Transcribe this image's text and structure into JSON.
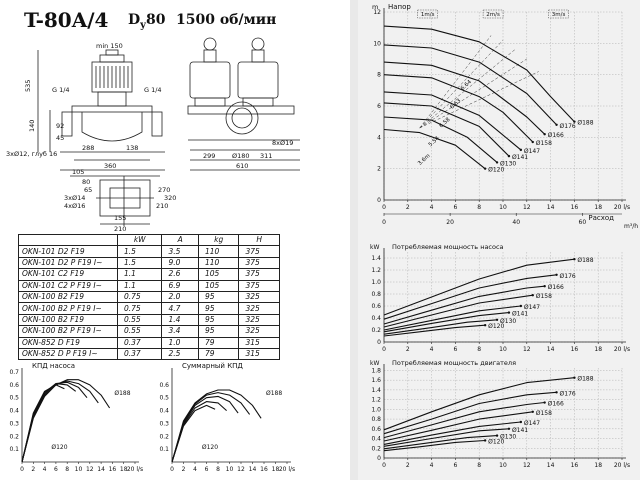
{
  "header": {
    "model": "T-80A/4",
    "dn_prefix": "D",
    "dn_sub": "y",
    "dn_value": "80",
    "speed": "1500 об/мин"
  },
  "drawing": {
    "dims": [
      "min 150",
      "535",
      "G 1/4",
      "G 1/4",
      "140",
      "92",
      "45",
      "288",
      "138",
      "360",
      "299",
      "8xØ19",
      "Ø180",
      "311",
      "610",
      "3xØ12, глуб 16",
      "105",
      "80",
      "65",
      "270",
      "320",
      "210",
      "155",
      "3xØ14",
      "4xØ16",
      "210"
    ]
  },
  "spec_table": {
    "headers": [
      "",
      "kW",
      "A",
      "kg",
      "H"
    ],
    "rows": [
      [
        "OKN-101 D2 F19",
        "1.5",
        "3.5",
        "110",
        "375"
      ],
      [
        "OKN-101 D2 P F19 I~",
        "1.5",
        "9.0",
        "110",
        "375"
      ],
      [
        "OKN-101 C2 F19",
        "1.1",
        "2.6",
        "105",
        "375"
      ],
      [
        "OKN-101 C2 P F19 I~",
        "1.1",
        "6.9",
        "105",
        "375"
      ],
      [
        "OKN-100 B2 F19",
        "0.75",
        "2.0",
        "95",
        "325"
      ],
      [
        "OKN-100 B2 P F19 I~",
        "0.75",
        "4.7",
        "95",
        "325"
      ],
      [
        "OKN-100 B2 F19",
        "0.55",
        "1.4",
        "95",
        "325"
      ],
      [
        "OKN-100 B2 P F19 I~",
        "0.55",
        "3.4",
        "95",
        "325"
      ],
      [
        "OKN-852 D F19",
        "0.37",
        "1.0",
        "79",
        "315"
      ],
      [
        "OKN-852 D P F19 I~",
        "0.37",
        "2.5",
        "79",
        "315"
      ]
    ]
  },
  "chart_data": [
    {
      "type": "line",
      "title": "КПД насоса",
      "xlabel": "",
      "x_tick_labels": [
        "0",
        "2",
        "4",
        "6",
        "8",
        "10",
        "12",
        "14",
        "16",
        "18",
        "20 l/s"
      ],
      "y_tick_labels": [
        "0.1",
        "0.2",
        "0.3",
        "0.4",
        "0.5",
        "0.6",
        "0.7"
      ],
      "xlim": [
        0,
        20
      ],
      "ylim": [
        0,
        0.7
      ],
      "annotations": [
        "Ø188",
        "Ø120"
      ],
      "series": [
        {
          "x": [
            0,
            2,
            4,
            6,
            7.5
          ],
          "y": [
            0,
            0.38,
            0.55,
            0.6,
            0.57
          ]
        },
        {
          "x": [
            0,
            2,
            4,
            6,
            8,
            9.5
          ],
          "y": [
            0,
            0.37,
            0.54,
            0.61,
            0.6,
            0.55
          ]
        },
        {
          "x": [
            0,
            2,
            4,
            6,
            8,
            10,
            11.5
          ],
          "y": [
            0,
            0.36,
            0.53,
            0.61,
            0.62,
            0.58,
            0.5
          ]
        },
        {
          "x": [
            0,
            2,
            4,
            6,
            8,
            10,
            12,
            13.5
          ],
          "y": [
            0,
            0.35,
            0.52,
            0.6,
            0.63,
            0.61,
            0.55,
            0.46
          ]
        },
        {
          "x": [
            0,
            2,
            4,
            6,
            8,
            10,
            12,
            14,
            15.5
          ],
          "y": [
            0,
            0.34,
            0.51,
            0.6,
            0.64,
            0.64,
            0.6,
            0.52,
            0.42
          ]
        }
      ]
    },
    {
      "type": "line",
      "title": "Суммарный КПД",
      "x_tick_labels": [
        "0",
        "2",
        "4",
        "6",
        "8",
        "10",
        "12",
        "14",
        "16",
        "18",
        "20 l/s"
      ],
      "y_tick_labels": [
        "0.1",
        "0.2",
        "0.3",
        "0.4",
        "0.5",
        "0.6"
      ],
      "xlim": [
        0,
        20
      ],
      "ylim": [
        0,
        0.7
      ],
      "annotations": [
        "Ø188",
        "Ø120"
      ],
      "series": [
        {
          "x": [
            0,
            2,
            4,
            6,
            7.5
          ],
          "y": [
            0,
            0.28,
            0.4,
            0.44,
            0.41
          ]
        },
        {
          "x": [
            0,
            2,
            4,
            6,
            8,
            9.5
          ],
          "y": [
            0,
            0.29,
            0.42,
            0.47,
            0.46,
            0.4
          ]
        },
        {
          "x": [
            0,
            2,
            4,
            6,
            8,
            10,
            11.5
          ],
          "y": [
            0,
            0.3,
            0.44,
            0.5,
            0.51,
            0.47,
            0.38
          ]
        },
        {
          "x": [
            0,
            2,
            4,
            6,
            8,
            10,
            12,
            13.5
          ],
          "y": [
            0,
            0.31,
            0.45,
            0.52,
            0.54,
            0.52,
            0.46,
            0.37
          ]
        },
        {
          "x": [
            0,
            2,
            4,
            6,
            8,
            10,
            12,
            14,
            15.5
          ],
          "y": [
            0,
            0.32,
            0.46,
            0.53,
            0.56,
            0.56,
            0.52,
            0.44,
            0.34
          ]
        }
      ]
    },
    {
      "type": "line",
      "title": "Напор",
      "xlabel": "Расход",
      "unit_m": "m",
      "unit_x2": "m³/h",
      "x_tick_labels": [
        "0",
        "2",
        "4",
        "6",
        "8",
        "10",
        "12",
        "14",
        "16",
        "18",
        "20 l/s"
      ],
      "x2_tick_labels": [
        "0",
        "20",
        "40",
        "60"
      ],
      "y_tick_labels": [
        "0",
        "2",
        "4",
        "6",
        "8",
        "10",
        "12"
      ],
      "xlim": [
        0,
        20
      ],
      "ylim": [
        0,
        12
      ],
      "velocity_labels": [
        "1m/s",
        "2m/s",
        "3m/s"
      ],
      "efficiency_labels": [
        "3.6m",
        "5.54",
        "6.58",
        "6.63",
        "6.64"
      ],
      "series": [
        {
          "name": "Ø188",
          "x": [
            0,
            4,
            8,
            12,
            14,
            16
          ],
          "y": [
            11.1,
            10.9,
            10.1,
            8.3,
            6.6,
            5.0
          ]
        },
        {
          "name": "Ø176",
          "x": [
            0,
            4,
            8,
            12,
            14.5
          ],
          "y": [
            9.9,
            9.7,
            8.8,
            6.8,
            4.8
          ]
        },
        {
          "name": "Ø166",
          "x": [
            0,
            4,
            8,
            12,
            13.5
          ],
          "y": [
            8.8,
            8.6,
            7.6,
            5.3,
            4.2
          ]
        },
        {
          "name": "Ø158",
          "x": [
            0,
            4,
            8,
            10,
            12.5
          ],
          "y": [
            8.0,
            7.8,
            6.6,
            5.6,
            3.7
          ]
        },
        {
          "name": "Ø147",
          "x": [
            0,
            4,
            8,
            11.5
          ],
          "y": [
            6.9,
            6.7,
            5.4,
            3.2
          ]
        },
        {
          "name": "Ø141",
          "x": [
            0,
            4,
            8,
            10.5
          ],
          "y": [
            6.2,
            6.0,
            4.7,
            2.8
          ]
        },
        {
          "name": "Ø130",
          "x": [
            0,
            4,
            7,
            9.5
          ],
          "y": [
            5.3,
            5.1,
            4.0,
            2.4
          ]
        },
        {
          "name": "Ø120",
          "x": [
            0,
            3,
            6,
            8.5
          ],
          "y": [
            4.5,
            4.3,
            3.5,
            2.0
          ]
        }
      ]
    },
    {
      "type": "line",
      "title": "Потребляемая мощность насоса",
      "unit_y": "kW",
      "x_tick_labels": [
        "0",
        "2",
        "4",
        "6",
        "8",
        "10",
        "12",
        "14",
        "16",
        "18",
        "20 l/s"
      ],
      "y_tick_labels": [
        "0",
        "0.2",
        "0.4",
        "0.6",
        "0.8",
        "1.0",
        "1.2",
        "1.4"
      ],
      "xlim": [
        0,
        20
      ],
      "ylim": [
        0,
        1.5
      ],
      "series": [
        {
          "name": "Ø188",
          "x": [
            0,
            4,
            8,
            12,
            16
          ],
          "y": [
            0.45,
            0.75,
            1.05,
            1.28,
            1.38
          ]
        },
        {
          "name": "Ø176",
          "x": [
            0,
            4,
            8,
            12,
            14.5
          ],
          "y": [
            0.38,
            0.64,
            0.9,
            1.06,
            1.12
          ]
        },
        {
          "name": "Ø166",
          "x": [
            0,
            4,
            8,
            12,
            13.5
          ],
          "y": [
            0.3,
            0.53,
            0.76,
            0.9,
            0.93
          ]
        },
        {
          "name": "Ø158",
          "x": [
            0,
            4,
            8,
            12.5
          ],
          "y": [
            0.25,
            0.45,
            0.65,
            0.78
          ]
        },
        {
          "name": "Ø147",
          "x": [
            0,
            4,
            8,
            11.5
          ],
          "y": [
            0.2,
            0.36,
            0.52,
            0.6
          ]
        },
        {
          "name": "Ø141",
          "x": [
            0,
            4,
            8,
            10.5
          ],
          "y": [
            0.17,
            0.31,
            0.44,
            0.49
          ]
        },
        {
          "name": "Ø130",
          "x": [
            0,
            4,
            7,
            9.5
          ],
          "y": [
            0.13,
            0.24,
            0.33,
            0.37
          ]
        },
        {
          "name": "Ø120",
          "x": [
            0,
            3,
            6,
            8.5
          ],
          "y": [
            0.1,
            0.17,
            0.24,
            0.28
          ]
        }
      ]
    },
    {
      "type": "line",
      "title": "Потребляемая мощность двигателя",
      "unit_y": "kW",
      "x_tick_labels": [
        "0",
        "2",
        "4",
        "6",
        "8",
        "10",
        "12",
        "14",
        "16",
        "18",
        "20 l/s"
      ],
      "y_tick_labels": [
        "0",
        "0.2",
        "0.4",
        "0.6",
        "0.8",
        "1.0",
        "1.2",
        "1.4",
        "1.6",
        "1.8"
      ],
      "xlim": [
        0,
        20
      ],
      "ylim": [
        0,
        1.85
      ],
      "series": [
        {
          "name": "Ø188",
          "x": [
            0,
            4,
            8,
            12,
            16
          ],
          "y": [
            0.58,
            0.95,
            1.3,
            1.55,
            1.65
          ]
        },
        {
          "name": "Ø176",
          "x": [
            0,
            4,
            8,
            12,
            14.5
          ],
          "y": [
            0.5,
            0.8,
            1.12,
            1.3,
            1.35
          ]
        },
        {
          "name": "Ø166",
          "x": [
            0,
            4,
            8,
            12,
            13.5
          ],
          "y": [
            0.42,
            0.68,
            0.95,
            1.1,
            1.14
          ]
        },
        {
          "name": "Ø158",
          "x": [
            0,
            4,
            8,
            12.5
          ],
          "y": [
            0.35,
            0.57,
            0.8,
            0.95
          ]
        },
        {
          "name": "Ø147",
          "x": [
            0,
            4,
            8,
            11.5
          ],
          "y": [
            0.28,
            0.47,
            0.65,
            0.74
          ]
        },
        {
          "name": "Ø141",
          "x": [
            0,
            4,
            8,
            10.5
          ],
          "y": [
            0.24,
            0.4,
            0.56,
            0.6
          ]
        },
        {
          "name": "Ø130",
          "x": [
            0,
            4,
            7,
            9.5
          ],
          "y": [
            0.19,
            0.32,
            0.42,
            0.46
          ]
        },
        {
          "name": "Ø120",
          "x": [
            0,
            3,
            6,
            8.5
          ],
          "y": [
            0.15,
            0.23,
            0.32,
            0.36
          ]
        }
      ]
    }
  ]
}
